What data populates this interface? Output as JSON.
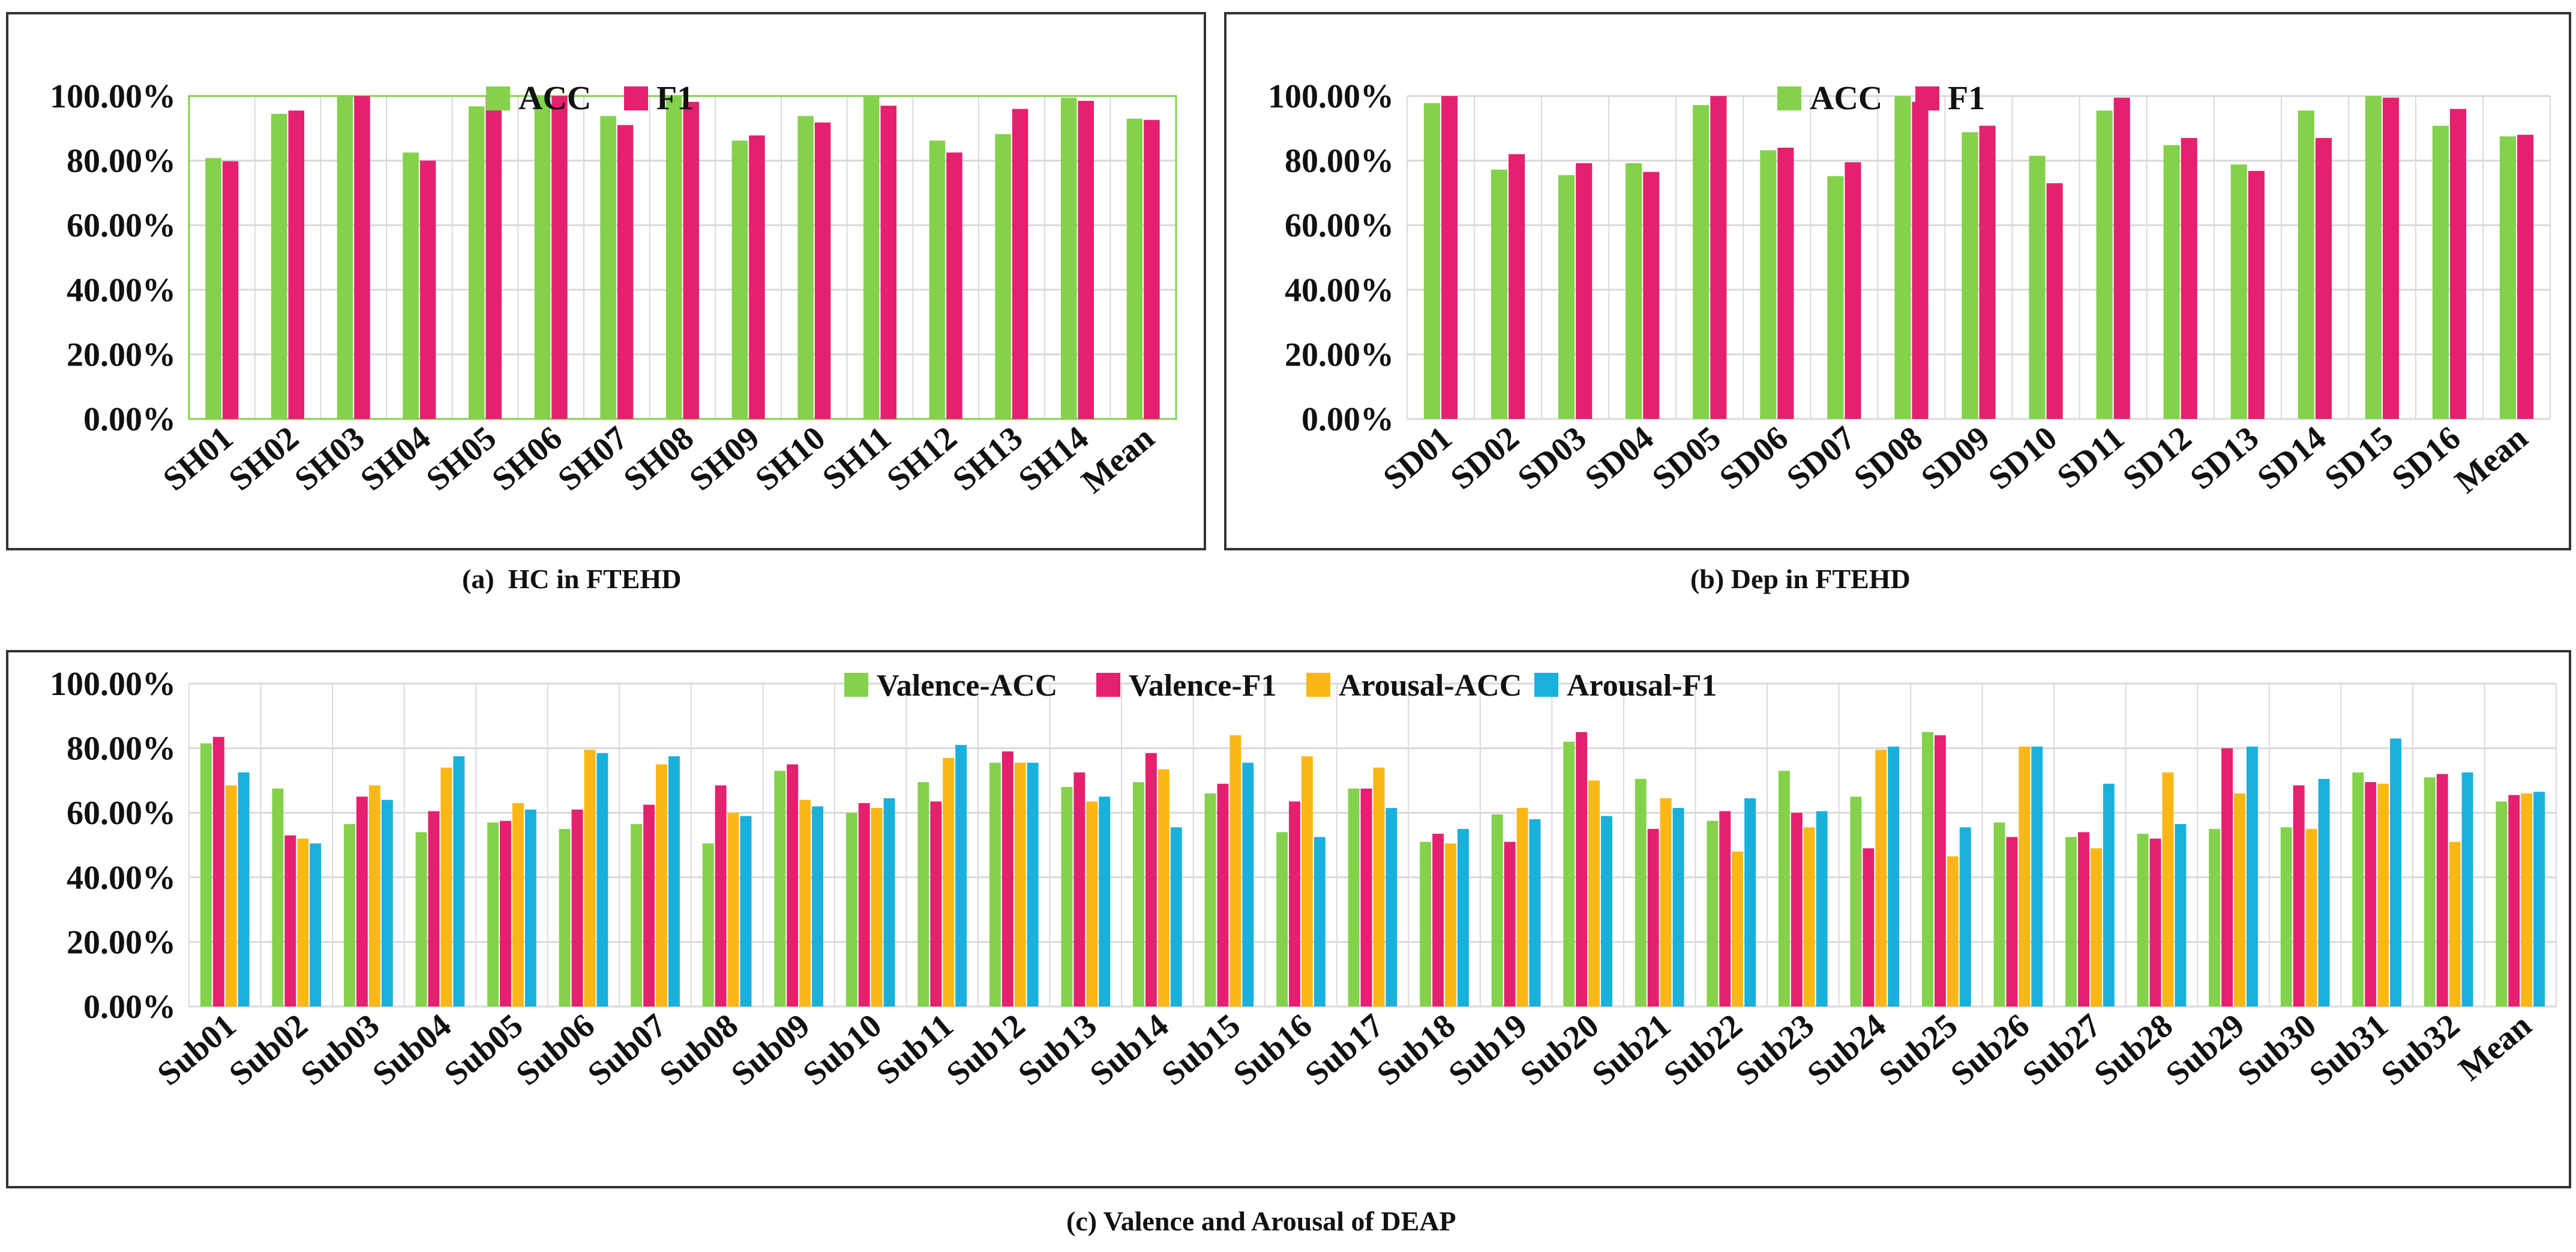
{
  "colors": {
    "acc": "#84d14b",
    "f1": "#e5206e",
    "valence_acc": "#84d14b",
    "valence_f1": "#e5206e",
    "arousal_acc": "#fbb715",
    "arousal_f1": "#1ab0dc",
    "grid": "#d9d9d9",
    "frame": "#333333",
    "plot_border_a": "#84d14b"
  },
  "captions": {
    "a": "(a)  HC in FTEHD",
    "b": "(b) Dep in FTEHD",
    "c": "(c) Valence and Arousal of DEAP"
  },
  "chart_data": [
    {
      "id": "a",
      "type": "bar",
      "title": "(a)  HC in FTEHD",
      "xlabel": "",
      "ylabel": "",
      "ylim": [
        0,
        100
      ],
      "yticks": [
        "0.00%",
        "20.00%",
        "40.00%",
        "60.00%",
        "80.00%",
        "100.00%"
      ],
      "grid": true,
      "legend_position": "top-center",
      "categories": [
        "SH01",
        "SH02",
        "SH03",
        "SH04",
        "SH05",
        "SH06",
        "SH07",
        "SH08",
        "SH09",
        "SH10",
        "SH11",
        "SH12",
        "SH13",
        "SH14",
        "Mean"
      ],
      "series": [
        {
          "name": "ACC",
          "color_key": "acc",
          "values": [
            80.8,
            94.5,
            100,
            82.5,
            96.8,
            100,
            93.8,
            100,
            86.2,
            93.8,
            100,
            86.2,
            88.2,
            99.5,
            93.0
          ]
        },
        {
          "name": "F1",
          "color_key": "f1",
          "values": [
            79.8,
            95.5,
            100,
            80.0,
            100,
            100,
            91.0,
            98.2,
            87.8,
            91.8,
            97.0,
            82.5,
            96.0,
            98.5,
            92.6
          ]
        }
      ]
    },
    {
      "id": "b",
      "type": "bar",
      "title": "(b) Dep in FTEHD",
      "xlabel": "",
      "ylabel": "",
      "ylim": [
        0,
        100
      ],
      "yticks": [
        "0.00%",
        "20.00%",
        "40.00%",
        "60.00%",
        "80.00%",
        "100.00%"
      ],
      "grid": true,
      "legend_position": "top-center",
      "categories": [
        "SD01",
        "SD02",
        "SD03",
        "SD04",
        "SD05",
        "SD06",
        "SD07",
        "SD08",
        "SD09",
        "SD10",
        "SD11",
        "SD12",
        "SD13",
        "SD14",
        "SD15",
        "SD16",
        "Mean"
      ],
      "series": [
        {
          "name": "ACC",
          "color_key": "acc",
          "values": [
            97.8,
            77.2,
            75.5,
            79.2,
            97.2,
            83.2,
            75.2,
            100,
            88.8,
            81.5,
            95.5,
            84.8,
            78.8,
            95.5,
            100,
            90.8,
            87.5
          ]
        },
        {
          "name": "F1",
          "color_key": "f1",
          "values": [
            100,
            82.0,
            79.2,
            76.5,
            100,
            84.0,
            79.5,
            98.2,
            90.8,
            73.0,
            99.5,
            87.0,
            76.8,
            87.0,
            99.5,
            96.0,
            88.0
          ]
        }
      ]
    },
    {
      "id": "c",
      "type": "bar",
      "title": "(c) Valence and Arousal of DEAP",
      "xlabel": "",
      "ylabel": "",
      "ylim": [
        0,
        100
      ],
      "yticks": [
        "0.00%",
        "20.00%",
        "40.00%",
        "60.00%",
        "80.00%",
        "100.00%"
      ],
      "grid": true,
      "legend_position": "top-center",
      "categories": [
        "Sub01",
        "Sub02",
        "Sub03",
        "Sub04",
        "Sub05",
        "Sub06",
        "Sub07",
        "Sub08",
        "Sub09",
        "Sub10",
        "Sub11",
        "Sub12",
        "Sub13",
        "Sub14",
        "Sub15",
        "Sub16",
        "Sub17",
        "Sub18",
        "Sub19",
        "Sub20",
        "Sub21",
        "Sub22",
        "Sub23",
        "Sub24",
        "Sub25",
        "Sub26",
        "Sub27",
        "Sub28",
        "Sub29",
        "Sub30",
        "Sub31",
        "Sub32",
        "Mean"
      ],
      "series": [
        {
          "name": "Valence-ACC",
          "color_key": "valence_acc",
          "values": [
            81.5,
            67.5,
            56.5,
            54.0,
            57.0,
            55.0,
            56.5,
            50.5,
            73.0,
            60.0,
            69.5,
            75.5,
            68.0,
            69.5,
            66.0,
            54.0,
            67.5,
            51.0,
            59.5,
            82.0,
            70.5,
            57.5,
            73.0,
            65.0,
            85.0,
            57.0,
            52.5,
            53.5,
            55.0,
            55.5,
            72.5,
            71.0,
            63.5
          ]
        },
        {
          "name": "Valence-F1",
          "color_key": "valence_f1",
          "values": [
            83.5,
            53.0,
            65.0,
            60.5,
            57.5,
            61.0,
            62.5,
            68.5,
            75.0,
            63.0,
            63.5,
            79.0,
            72.5,
            78.5,
            69.0,
            63.5,
            67.5,
            53.5,
            51.0,
            85.0,
            55.0,
            60.5,
            60.0,
            49.0,
            84.0,
            52.5,
            54.0,
            52.0,
            80.0,
            68.5,
            69.5,
            72.0,
            65.5
          ]
        },
        {
          "name": "Arousal-ACC",
          "color_key": "arousal_acc",
          "values": [
            68.5,
            52.0,
            68.5,
            74.0,
            63.0,
            79.5,
            75.0,
            60.0,
            64.0,
            61.5,
            77.0,
            75.5,
            63.5,
            73.5,
            84.0,
            77.5,
            74.0,
            50.5,
            61.5,
            70.0,
            64.5,
            48.0,
            55.5,
            79.5,
            46.5,
            80.5,
            49.0,
            72.5,
            66.0,
            55.0,
            69.0,
            51.0,
            66.0
          ]
        },
        {
          "name": "Arousal-F1",
          "color_key": "arousal_f1",
          "values": [
            72.5,
            50.5,
            64.0,
            77.5,
            61.0,
            78.5,
            77.5,
            59.0,
            62.0,
            64.5,
            81.0,
            75.5,
            65.0,
            55.5,
            75.5,
            52.5,
            61.5,
            55.0,
            58.0,
            59.0,
            61.5,
            64.5,
            60.5,
            80.5,
            55.5,
            80.5,
            69.0,
            56.5,
            80.5,
            70.5,
            83.0,
            72.5,
            66.5
          ]
        }
      ]
    }
  ]
}
